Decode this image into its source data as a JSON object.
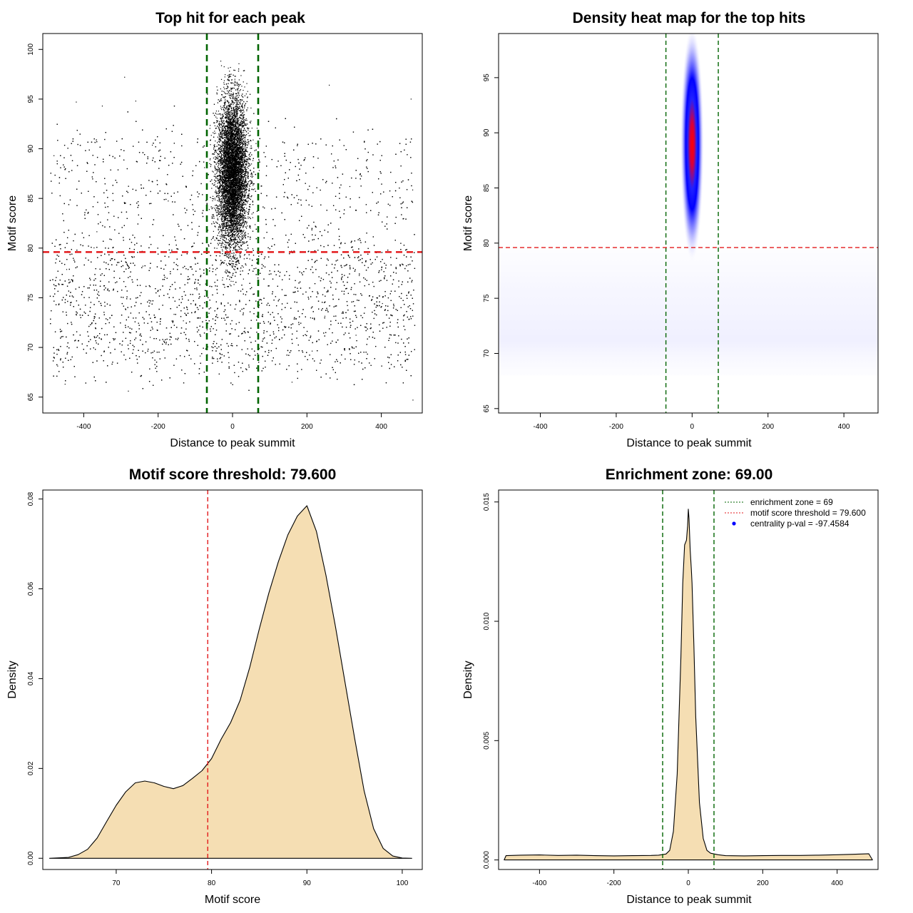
{
  "chart_data": [
    {
      "type": "scatter",
      "title": "Top hit for each peak",
      "xlabel": "Distance to peak summit",
      "ylabel": "Motif score",
      "xlim": [
        -510,
        510
      ],
      "ylim": [
        63.4,
        101.6
      ],
      "xticks": [
        -400,
        -200,
        0,
        200,
        400
      ],
      "yticks": [
        65,
        70,
        75,
        80,
        85,
        90,
        95,
        100
      ],
      "grid": false,
      "hlines": [
        {
          "y": 79.6,
          "color": "#e31a1c",
          "style": "dashed"
        }
      ],
      "vlines": [
        {
          "x": -69,
          "color": "#006400",
          "style": "dashed"
        },
        {
          "x": 69,
          "color": "#006400",
          "style": "dashed"
        }
      ],
      "point_color": "#000000",
      "description_of_distribution": {
        "central_cluster": {
          "x_mean": 0,
          "x_sd": 20,
          "y_mean": 87.5,
          "y_sd": 3.8,
          "y_range": [
            76,
            99
          ]
        },
        "background": {
          "x_range": [
            -490,
            490
          ],
          "y_range": [
            64.7,
            97.2
          ],
          "dense_y_range": [
            68,
            80
          ]
        }
      },
      "outlier_points": [
        {
          "x": -290,
          "y": 97.2
        },
        {
          "x": -420,
          "y": 94.7
        },
        {
          "x": -350,
          "y": 94.3
        },
        {
          "x": -260,
          "y": 94.8
        },
        {
          "x": 260,
          "y": 96.4
        },
        {
          "x": 480,
          "y": 95.0
        },
        {
          "x": -480,
          "y": 89.3
        },
        {
          "x": 485,
          "y": 64.7
        },
        {
          "x": -280,
          "y": 65.6
        },
        {
          "x": -450,
          "y": 66.3
        },
        {
          "x": 160,
          "y": 66.5
        }
      ]
    },
    {
      "type": "heatmap",
      "title": "Density heat map for the top hits",
      "xlabel": "Distance to peak summit",
      "ylabel": "Motif score",
      "xlim": [
        -510,
        490
      ],
      "ylim": [
        64.6,
        99.0
      ],
      "xticks": [
        -400,
        -200,
        0,
        200,
        400
      ],
      "yticks": [
        65,
        70,
        75,
        80,
        85,
        90,
        95
      ],
      "colors": [
        "#ffffff",
        "#0000ff",
        "#ff0000"
      ],
      "hotspot": {
        "x": 0,
        "y": 89,
        "x_spread": 12,
        "y_spread": 4.5
      },
      "hlines": [
        {
          "y": 79.6,
          "color": "#e31a1c",
          "style": "dashed"
        }
      ],
      "vlines": [
        {
          "x": -69,
          "color": "#006400",
          "style": "dashed"
        },
        {
          "x": 69,
          "color": "#006400",
          "style": "dashed"
        }
      ]
    },
    {
      "type": "area",
      "title": "Motif score threshold: 79.600",
      "xlabel": "Motif score",
      "ylabel": "Density",
      "xlim": [
        62.3,
        102.1
      ],
      "ylim": [
        -0.0025,
        0.082
      ],
      "xticks": [
        70,
        80,
        90,
        100
      ],
      "yticks": [
        0.0,
        0.02,
        0.04,
        0.06,
        0.08
      ],
      "ytick_labels": [
        "0.00",
        "0.02",
        "0.04",
        "0.06",
        "0.08"
      ],
      "fill_color": "#f5deb3",
      "x": [
        63.0,
        65.0,
        66.0,
        67.0,
        68.0,
        69.0,
        70.0,
        71.0,
        72.0,
        73.0,
        74.0,
        75.0,
        76.0,
        77.0,
        78.0,
        79.0,
        80.0,
        81.0,
        82.0,
        83.0,
        84.0,
        85.0,
        86.0,
        87.0,
        88.0,
        89.0,
        90.0,
        91.0,
        92.0,
        93.0,
        94.0,
        95.0,
        96.0,
        97.0,
        98.0,
        99.0,
        100.0,
        101.0
      ],
      "y": [
        0.0,
        0.0002,
        0.0008,
        0.002,
        0.0045,
        0.0082,
        0.0118,
        0.0148,
        0.0168,
        0.0172,
        0.0168,
        0.016,
        0.0155,
        0.0162,
        0.0178,
        0.0195,
        0.0222,
        0.0265,
        0.0302,
        0.0352,
        0.0425,
        0.051,
        0.059,
        0.066,
        0.072,
        0.0762,
        0.0785,
        0.0728,
        0.063,
        0.0515,
        0.0392,
        0.0268,
        0.015,
        0.0066,
        0.0022,
        0.0005,
        5e-05,
        0.0
      ],
      "vlines": [
        {
          "x": 79.6,
          "color": "#e31a1c",
          "style": "dashed"
        }
      ]
    },
    {
      "type": "area",
      "title": "Enrichment zone: 69.00",
      "xlabel": "Distance to peak summit",
      "ylabel": "Density",
      "xlim": [
        -510,
        510
      ],
      "ylim": [
        -0.0004,
        0.0155
      ],
      "xticks": [
        -400,
        -200,
        0,
        200,
        400
      ],
      "yticks": [
        0.0,
        0.005,
        0.01,
        0.015
      ],
      "ytick_labels": [
        "0.000",
        "0.005",
        "0.010",
        "0.015"
      ],
      "fill_color": "#f5deb3",
      "x": [
        -495,
        -490,
        -450,
        -400,
        -350,
        -300,
        -250,
        -200,
        -150,
        -100,
        -80,
        -60,
        -50,
        -40,
        -30,
        -20,
        -15,
        -10,
        -5,
        -2,
        0,
        2,
        5,
        8,
        10,
        15,
        20,
        30,
        40,
        50,
        60,
        80,
        100,
        150,
        200,
        250,
        300,
        350,
        400,
        450,
        485,
        495
      ],
      "y": [
        0.0,
        0.00018,
        0.0002,
        0.00021,
        0.00019,
        0.0002,
        0.00018,
        0.00017,
        0.00018,
        0.00019,
        0.0002,
        0.00025,
        0.0004,
        0.0012,
        0.0036,
        0.0085,
        0.0116,
        0.0132,
        0.0134,
        0.014,
        0.0147,
        0.0143,
        0.013,
        0.0122,
        0.0116,
        0.009,
        0.006,
        0.0024,
        0.0009,
        0.0004,
        0.00028,
        0.00022,
        0.00018,
        0.00017,
        0.00018,
        0.00019,
        0.00019,
        0.0002,
        0.00022,
        0.00024,
        0.00026,
        0.0
      ],
      "vlines": [
        {
          "x": -69,
          "color": "#006400",
          "style": "dashed"
        },
        {
          "x": 69,
          "color": "#006400",
          "style": "dashed"
        }
      ],
      "legend": {
        "position": "top-right",
        "entries": [
          {
            "label": "enrichment zone = 69",
            "color": "#006400",
            "marker": "dotted-line"
          },
          {
            "label": "motif score threshold = 79.600",
            "color": "#e31a1c",
            "marker": "dotted-line"
          },
          {
            "label": "centrality p-val = -97.4584",
            "color": "#0000ff",
            "marker": "point"
          }
        ]
      }
    }
  ]
}
